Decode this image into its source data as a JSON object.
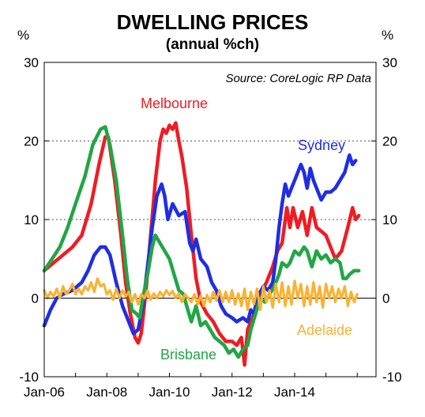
{
  "chart_data": {
    "type": "line",
    "title": "DWELLING PRICES",
    "subtitle": "(annual %ch)",
    "ylabel_left": "%",
    "ylabel_right": "%",
    "source": "Source: CoreLogic RP Data",
    "ylim": [
      -10,
      30
    ],
    "yticks": [
      "30",
      "20",
      "10",
      "0",
      "-10"
    ],
    "xlim": [
      2006.0,
      2016.6
    ],
    "xticks": [
      {
        "label": "Jan-06",
        "x": 2006.0
      },
      {
        "label": "Jan-08",
        "x": 2008.0
      },
      {
        "label": "Jan-10",
        "x": 2010.0
      },
      {
        "label": "Jan-12",
        "x": 2012.0
      },
      {
        "label": "Jan-14",
        "x": 2014.0
      }
    ],
    "dotted_gridlines_at": [
      10,
      20
    ],
    "zero_line": true,
    "series": [
      {
        "name": "Melbourne",
        "color": "#ef1c24",
        "points": [
          [
            2006.0,
            3.5
          ],
          [
            2006.3,
            4.5
          ],
          [
            2006.6,
            5.5
          ],
          [
            2006.9,
            6.5
          ],
          [
            2007.2,
            8.0
          ],
          [
            2007.5,
            12.0
          ],
          [
            2007.75,
            17.0
          ],
          [
            2007.95,
            20.5
          ],
          [
            2008.05,
            20.5
          ],
          [
            2008.25,
            15.0
          ],
          [
            2008.45,
            8.0
          ],
          [
            2008.6,
            2.0
          ],
          [
            2008.75,
            -2.0
          ],
          [
            2008.9,
            -5.0
          ],
          [
            2009.0,
            -5.7
          ],
          [
            2009.1,
            -4.5
          ],
          [
            2009.25,
            1.0
          ],
          [
            2009.4,
            8.0
          ],
          [
            2009.55,
            15.0
          ],
          [
            2009.7,
            20.0
          ],
          [
            2009.8,
            21.5
          ],
          [
            2009.9,
            21.0
          ],
          [
            2010.0,
            22.0
          ],
          [
            2010.1,
            21.5
          ],
          [
            2010.2,
            22.3
          ],
          [
            2010.3,
            20.0
          ],
          [
            2010.4,
            18.0
          ],
          [
            2010.55,
            14.0
          ],
          [
            2010.7,
            8.0
          ],
          [
            2010.85,
            2.5
          ],
          [
            2011.0,
            -0.5
          ],
          [
            2011.2,
            -2.0
          ],
          [
            2011.4,
            -3.0
          ],
          [
            2011.6,
            -4.5
          ],
          [
            2011.8,
            -5.5
          ],
          [
            2012.0,
            -5.5
          ],
          [
            2012.15,
            -6.0
          ],
          [
            2012.3,
            -5.0
          ],
          [
            2012.4,
            -8.5
          ],
          [
            2012.5,
            -4.0
          ],
          [
            2012.7,
            -2.0
          ],
          [
            2012.9,
            0.5
          ],
          [
            2013.1,
            2.0
          ],
          [
            2013.3,
            4.0
          ],
          [
            2013.45,
            6.0
          ],
          [
            2013.6,
            7.0
          ],
          [
            2013.75,
            11.5
          ],
          [
            2013.85,
            9.0
          ],
          [
            2013.95,
            11.5
          ],
          [
            2014.1,
            9.0
          ],
          [
            2014.25,
            11.0
          ],
          [
            2014.4,
            8.0
          ],
          [
            2014.55,
            11.5
          ],
          [
            2014.7,
            9.0
          ],
          [
            2014.85,
            8.5
          ],
          [
            2015.0,
            8.0
          ],
          [
            2015.15,
            6.5
          ],
          [
            2015.3,
            5.0
          ],
          [
            2015.5,
            6.0
          ],
          [
            2015.7,
            9.0
          ],
          [
            2015.85,
            11.5
          ],
          [
            2015.95,
            10.0
          ],
          [
            2016.05,
            10.5
          ]
        ]
      },
      {
        "name": "Sydney",
        "color": "#1f2ee3",
        "points": [
          [
            2006.0,
            -3.5
          ],
          [
            2006.2,
            -1.5
          ],
          [
            2006.4,
            0.0
          ],
          [
            2006.6,
            0.5
          ],
          [
            2006.9,
            1.0
          ],
          [
            2007.2,
            2.0
          ],
          [
            2007.4,
            3.5
          ],
          [
            2007.6,
            5.5
          ],
          [
            2007.8,
            6.5
          ],
          [
            2007.95,
            6.5
          ],
          [
            2008.1,
            5.5
          ],
          [
            2008.3,
            2.0
          ],
          [
            2008.5,
            -1.0
          ],
          [
            2008.7,
            -3.0
          ],
          [
            2008.85,
            -4.5
          ],
          [
            2009.0,
            -4.0
          ],
          [
            2009.15,
            -1.0
          ],
          [
            2009.3,
            4.0
          ],
          [
            2009.45,
            9.0
          ],
          [
            2009.6,
            13.0
          ],
          [
            2009.75,
            14.5
          ],
          [
            2009.85,
            13.0
          ],
          [
            2009.95,
            10.0
          ],
          [
            2010.1,
            12.0
          ],
          [
            2010.3,
            10.5
          ],
          [
            2010.5,
            11.0
          ],
          [
            2010.65,
            7.0
          ],
          [
            2010.75,
            6.0
          ],
          [
            2010.85,
            7.5
          ],
          [
            2011.0,
            5.0
          ],
          [
            2011.2,
            4.0
          ],
          [
            2011.35,
            2.0
          ],
          [
            2011.5,
            1.0
          ],
          [
            2011.65,
            -1.0
          ],
          [
            2011.8,
            -2.0
          ],
          [
            2012.0,
            -2.5
          ],
          [
            2012.15,
            -3.0
          ],
          [
            2012.35,
            -2.5
          ],
          [
            2012.5,
            -3.0
          ],
          [
            2012.6,
            -1.5
          ],
          [
            2012.7,
            -2.0
          ],
          [
            2012.8,
            0.0
          ],
          [
            2013.0,
            1.5
          ],
          [
            2013.15,
            1.0
          ],
          [
            2013.3,
            2.0
          ],
          [
            2013.4,
            5.0
          ],
          [
            2013.5,
            9.0
          ],
          [
            2013.6,
            12.0
          ],
          [
            2013.7,
            14.5
          ],
          [
            2013.8,
            13.0
          ],
          [
            2013.9,
            14.0
          ],
          [
            2014.05,
            15.5
          ],
          [
            2014.2,
            17.0
          ],
          [
            2014.3,
            16.0
          ],
          [
            2014.4,
            14.0
          ],
          [
            2014.5,
            16.5
          ],
          [
            2014.6,
            15.0
          ],
          [
            2014.75,
            13.5
          ],
          [
            2014.85,
            12.5
          ],
          [
            2015.0,
            13.5
          ],
          [
            2015.15,
            13.5
          ],
          [
            2015.3,
            14.0
          ],
          [
            2015.45,
            15.0
          ],
          [
            2015.6,
            16.0
          ],
          [
            2015.75,
            18.2
          ],
          [
            2015.85,
            17.0
          ],
          [
            2015.95,
            17.5
          ]
        ]
      },
      {
        "name": "Brisbane",
        "color": "#21a645",
        "points": [
          [
            2006.0,
            3.5
          ],
          [
            2006.25,
            5.0
          ],
          [
            2006.5,
            6.5
          ],
          [
            2006.75,
            9.0
          ],
          [
            2007.0,
            12.0
          ],
          [
            2007.3,
            15.5
          ],
          [
            2007.55,
            19.5
          ],
          [
            2007.8,
            21.5
          ],
          [
            2007.95,
            21.8
          ],
          [
            2008.1,
            19.5
          ],
          [
            2008.3,
            15.0
          ],
          [
            2008.5,
            8.0
          ],
          [
            2008.65,
            2.5
          ],
          [
            2008.8,
            -1.5
          ],
          [
            2008.95,
            -2.0
          ],
          [
            2009.05,
            -2.5
          ],
          [
            2009.15,
            0.0
          ],
          [
            2009.3,
            3.0
          ],
          [
            2009.45,
            6.5
          ],
          [
            2009.55,
            8.0
          ],
          [
            2009.7,
            7.0
          ],
          [
            2009.85,
            6.0
          ],
          [
            2010.0,
            5.0
          ],
          [
            2010.15,
            3.0
          ],
          [
            2010.3,
            1.0
          ],
          [
            2010.45,
            0.5
          ],
          [
            2010.55,
            -1.0
          ],
          [
            2010.7,
            -3.0
          ],
          [
            2010.85,
            -1.0
          ],
          [
            2011.0,
            -3.5
          ],
          [
            2011.15,
            -3.0
          ],
          [
            2011.3,
            -4.0
          ],
          [
            2011.45,
            -5.0
          ],
          [
            2011.6,
            -5.5
          ],
          [
            2011.75,
            -6.0
          ],
          [
            2011.9,
            -7.0
          ],
          [
            2012.05,
            -6.5
          ],
          [
            2012.2,
            -7.5
          ],
          [
            2012.35,
            -6.5
          ],
          [
            2012.5,
            -6.0
          ],
          [
            2012.6,
            -4.0
          ],
          [
            2012.75,
            -2.0
          ],
          [
            2012.9,
            0.0
          ],
          [
            2013.05,
            -0.5
          ],
          [
            2013.2,
            0.5
          ],
          [
            2013.35,
            1.5
          ],
          [
            2013.5,
            3.0
          ],
          [
            2013.6,
            4.5
          ],
          [
            2013.75,
            4.0
          ],
          [
            2013.85,
            4.5
          ],
          [
            2014.0,
            6.0
          ],
          [
            2014.15,
            5.5
          ],
          [
            2014.3,
            6.5
          ],
          [
            2014.4,
            6.0
          ],
          [
            2014.55,
            4.0
          ],
          [
            2014.7,
            6.0
          ],
          [
            2014.85,
            5.0
          ],
          [
            2015.0,
            5.5
          ],
          [
            2015.15,
            4.5
          ],
          [
            2015.3,
            5.0
          ],
          [
            2015.45,
            4.5
          ],
          [
            2015.55,
            2.5
          ],
          [
            2015.65,
            2.5
          ],
          [
            2015.75,
            3.0
          ],
          [
            2015.9,
            3.5
          ],
          [
            2016.05,
            3.5
          ]
        ]
      },
      {
        "name": "Adelaide",
        "color": "#f9b233",
        "points": [
          [
            2006.0,
            1.0
          ],
          [
            2006.1,
            0.0
          ],
          [
            2006.2,
            0.8
          ],
          [
            2006.3,
            0.2
          ],
          [
            2006.4,
            1.2
          ],
          [
            2006.5,
            0.0
          ],
          [
            2006.6,
            1.5
          ],
          [
            2006.7,
            0.5
          ],
          [
            2006.8,
            1.0
          ],
          [
            2006.9,
            1.8
          ],
          [
            2007.0,
            0.5
          ],
          [
            2007.1,
            1.2
          ],
          [
            2007.2,
            0.5
          ],
          [
            2007.3,
            1.5
          ],
          [
            2007.4,
            1.0
          ],
          [
            2007.5,
            2.0
          ],
          [
            2007.6,
            0.8
          ],
          [
            2007.7,
            2.5
          ],
          [
            2007.8,
            1.5
          ],
          [
            2007.9,
            1.8
          ],
          [
            2008.0,
            0.5
          ],
          [
            2008.1,
            1.0
          ],
          [
            2008.2,
            -0.2
          ],
          [
            2008.3,
            1.2
          ],
          [
            2008.4,
            0.0
          ],
          [
            2008.5,
            1.0
          ],
          [
            2008.6,
            0.2
          ],
          [
            2008.7,
            0.8
          ],
          [
            2008.8,
            -0.5
          ],
          [
            2008.9,
            0.5
          ],
          [
            2009.0,
            -0.8
          ],
          [
            2009.1,
            0.5
          ],
          [
            2009.2,
            0.0
          ],
          [
            2009.3,
            1.0
          ],
          [
            2009.4,
            -0.2
          ],
          [
            2009.5,
            0.6
          ],
          [
            2009.6,
            0.0
          ],
          [
            2009.7,
            0.8
          ],
          [
            2009.8,
            0.2
          ],
          [
            2009.9,
            1.0
          ],
          [
            2010.0,
            0.4
          ],
          [
            2010.1,
            0.9
          ],
          [
            2010.2,
            0.0
          ],
          [
            2010.3,
            0.6
          ],
          [
            2010.4,
            -0.5
          ],
          [
            2010.5,
            0.5
          ],
          [
            2010.6,
            0.0
          ],
          [
            2010.7,
            -0.5
          ],
          [
            2010.8,
            0.5
          ],
          [
            2010.9,
            -0.8
          ],
          [
            2011.0,
            0.3
          ],
          [
            2011.1,
            -1.0
          ],
          [
            2011.2,
            0.4
          ],
          [
            2011.3,
            -0.5
          ],
          [
            2011.4,
            0.8
          ],
          [
            2011.5,
            -0.3
          ],
          [
            2011.6,
            1.0
          ],
          [
            2011.7,
            -0.5
          ],
          [
            2011.8,
            0.8
          ],
          [
            2011.9,
            -0.5
          ],
          [
            2012.0,
            1.0
          ],
          [
            2012.1,
            -0.8
          ],
          [
            2012.2,
            0.6
          ],
          [
            2012.3,
            -1.0
          ],
          [
            2012.4,
            1.2
          ],
          [
            2012.5,
            -1.5
          ],
          [
            2012.6,
            0.8
          ],
          [
            2012.7,
            -0.8
          ],
          [
            2012.8,
            1.2
          ],
          [
            2012.9,
            -1.5
          ],
          [
            2013.0,
            1.5
          ],
          [
            2013.1,
            -0.5
          ],
          [
            2013.2,
            1.0
          ],
          [
            2013.3,
            -1.2
          ],
          [
            2013.4,
            1.8
          ],
          [
            2013.5,
            -0.5
          ],
          [
            2013.6,
            2.0
          ],
          [
            2013.7,
            -1.0
          ],
          [
            2013.8,
            1.5
          ],
          [
            2013.9,
            -0.8
          ],
          [
            2014.0,
            2.2
          ],
          [
            2014.1,
            0.0
          ],
          [
            2014.2,
            1.8
          ],
          [
            2014.3,
            -1.0
          ],
          [
            2014.4,
            1.5
          ],
          [
            2014.5,
            -0.8
          ],
          [
            2014.6,
            2.0
          ],
          [
            2014.7,
            -0.5
          ],
          [
            2014.8,
            1.5
          ],
          [
            2014.9,
            -1.2
          ],
          [
            2015.0,
            1.8
          ],
          [
            2015.1,
            0.0
          ],
          [
            2015.2,
            1.5
          ],
          [
            2015.3,
            -0.5
          ],
          [
            2015.4,
            1.2
          ],
          [
            2015.5,
            0.0
          ],
          [
            2015.6,
            1.5
          ],
          [
            2015.7,
            -1.0
          ],
          [
            2015.8,
            0.8
          ],
          [
            2015.9,
            -0.5
          ],
          [
            2016.0,
            0.5
          ]
        ]
      }
    ]
  }
}
